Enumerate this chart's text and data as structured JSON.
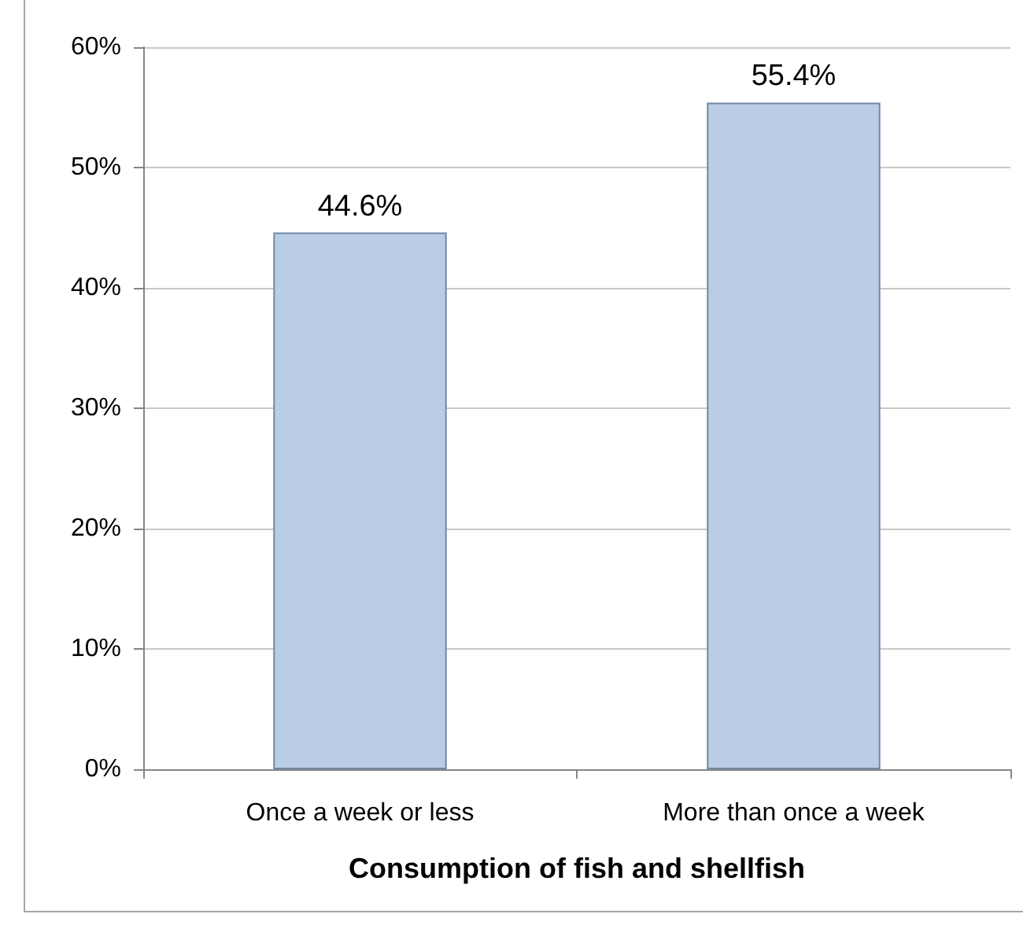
{
  "chart_data": {
    "type": "bar",
    "xlabel": "Consumption of fish and shellfish",
    "categories": [
      "Once a week or less",
      "More than once a week"
    ],
    "values": [
      44.6,
      55.4
    ],
    "value_labels": [
      "44.6%",
      "55.4%"
    ],
    "color": "#b9cde5",
    "ylim": [
      0,
      60
    ],
    "yticks": [
      {
        "value": 0,
        "label": "0%"
      },
      {
        "value": 10,
        "label": "10%"
      },
      {
        "value": 20,
        "label": "20%"
      },
      {
        "value": 30,
        "label": "30%"
      },
      {
        "value": 40,
        "label": "40%"
      },
      {
        "value": 50,
        "label": "50%"
      },
      {
        "value": 60,
        "label": "60%"
      }
    ],
    "grid": "y"
  }
}
